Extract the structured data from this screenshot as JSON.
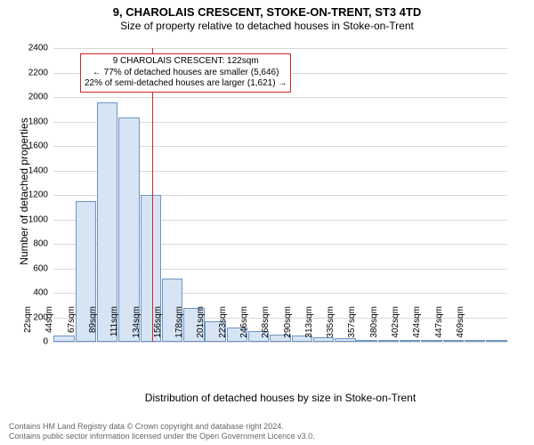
{
  "title_line1": "9, CHAROLAIS CRESCENT, STOKE-ON-TRENT, ST3 4TD",
  "title_line2": "Size of property relative to detached houses in Stoke-on-Trent",
  "ylabel": "Number of detached properties",
  "xlabel": "Distribution of detached houses by size in Stoke-on-Trent",
  "footer_line1": "Contains HM Land Registry data © Crown copyright and database right 2024.",
  "footer_line2": "Contains public sector information licensed under the Open Government Licence v3.0.",
  "chart": {
    "type": "histogram",
    "ylim": [
      0,
      2400
    ],
    "ytick_step": 200,
    "background_color": "#ffffff",
    "grid_color": "#d9d9d9",
    "bar_fill": "#d6e4f4",
    "bar_stroke": "#6d94c4",
    "bar_stroke_width": 1,
    "reference_line_color": "#d62728",
    "reference_value_sqm": 122,
    "annotation_border_color": "#d62728",
    "annotation_lines": [
      "9 CHAROLAIS CRESCENT: 122sqm",
      "← 77% of detached houses are smaller (5,646)",
      "22% of semi-detached houses are larger (1,621) →"
    ],
    "categories": [
      "22sqm",
      "44sqm",
      "67sqm",
      "89sqm",
      "111sqm",
      "134sqm",
      "156sqm",
      "178sqm",
      "201sqm",
      "223sqm",
      "246sqm",
      "268sqm",
      "290sqm",
      "313sqm",
      "335sqm",
      "357sqm",
      "380sqm",
      "402sqm",
      "424sqm",
      "447sqm",
      "469sqm"
    ],
    "values": [
      50,
      1150,
      1960,
      1830,
      1200,
      520,
      280,
      170,
      120,
      90,
      60,
      50,
      40,
      30,
      10,
      0,
      10,
      0,
      0,
      0,
      10
    ]
  }
}
